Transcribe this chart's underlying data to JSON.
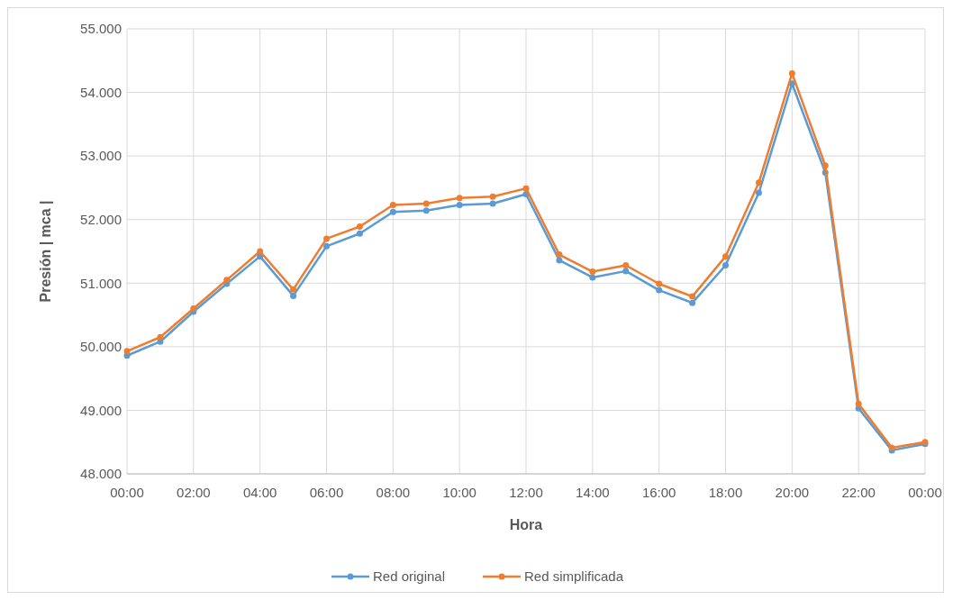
{
  "chart_data": {
    "type": "line",
    "xlabel": "Hora",
    "ylabel": "Presión | mca |",
    "x": [
      0,
      1,
      2,
      3,
      4,
      5,
      6,
      7,
      8,
      9,
      10,
      11,
      12,
      13,
      14,
      15,
      16,
      17,
      18,
      19,
      20,
      21,
      22,
      23,
      24
    ],
    "series": [
      {
        "name": "Red original",
        "color": "#5b9bd5",
        "values": [
          49.86,
          50.08,
          50.55,
          50.99,
          51.42,
          50.8,
          51.58,
          51.78,
          52.12,
          52.14,
          52.23,
          52.25,
          52.4,
          51.36,
          51.09,
          51.19,
          50.89,
          50.69,
          51.28,
          52.42,
          54.14,
          52.74,
          49.03,
          48.37,
          48.47
        ]
      },
      {
        "name": "Red simplificada",
        "color": "#ed7d31",
        "values": [
          49.93,
          50.15,
          50.6,
          51.05,
          51.5,
          50.9,
          51.7,
          51.89,
          52.23,
          52.25,
          52.34,
          52.36,
          52.49,
          51.45,
          51.18,
          51.28,
          50.99,
          50.79,
          51.42,
          52.58,
          54.3,
          52.85,
          49.1,
          48.41,
          48.5
        ]
      }
    ],
    "xlim": [
      0,
      24
    ],
    "xticks": [
      {
        "value": 0,
        "label": "00:00"
      },
      {
        "value": 2,
        "label": "02:00"
      },
      {
        "value": 4,
        "label": "04:00"
      },
      {
        "value": 6,
        "label": "06:00"
      },
      {
        "value": 8,
        "label": "08:00"
      },
      {
        "value": 10,
        "label": "10:00"
      },
      {
        "value": 12,
        "label": "12:00"
      },
      {
        "value": 14,
        "label": "14:00"
      },
      {
        "value": 16,
        "label": "16:00"
      },
      {
        "value": 18,
        "label": "18:00"
      },
      {
        "value": 20,
        "label": "20:00"
      },
      {
        "value": 22,
        "label": "22:00"
      },
      {
        "value": 24,
        "label": "00:00"
      }
    ],
    "ylim": [
      48,
      55
    ],
    "yticks": [
      {
        "value": 48,
        "label": "48.000"
      },
      {
        "value": 49,
        "label": "49.000"
      },
      {
        "value": 50,
        "label": "50.000"
      },
      {
        "value": 51,
        "label": "51.000"
      },
      {
        "value": 52,
        "label": "52.000"
      },
      {
        "value": 53,
        "label": "53.000"
      },
      {
        "value": 54,
        "label": "54.000"
      },
      {
        "value": 55,
        "label": "55.000"
      }
    ],
    "grid": true,
    "legend": "bottom",
    "marker": "circle",
    "line_style": "solid"
  }
}
